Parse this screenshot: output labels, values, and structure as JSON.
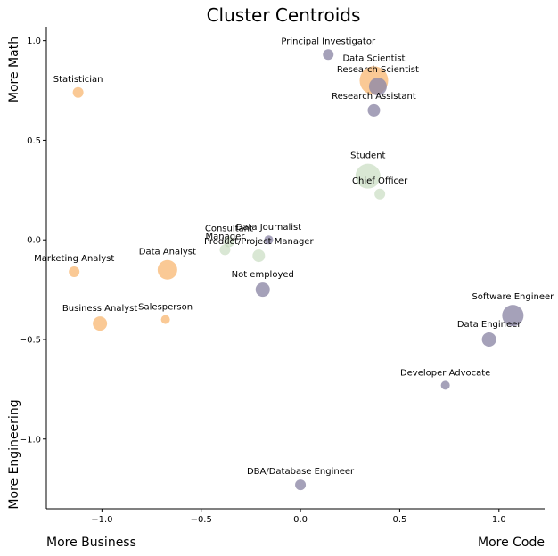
{
  "chart_data": {
    "type": "scatter",
    "title": "Cluster Centroids",
    "xlim": [
      -1.28,
      1.23
    ],
    "ylim": [
      -1.35,
      1.07
    ],
    "x_ticks": [
      -1.0,
      -0.5,
      0.0,
      0.5,
      1.0
    ],
    "x_tick_labels": [
      "−1.0",
      "−0.5",
      "0.0",
      "0.5",
      "1.0"
    ],
    "y_ticks": [
      1.0,
      0.5,
      0.0,
      -0.5,
      -1.0
    ],
    "y_tick_labels": [
      "1.0",
      "0.5",
      "0.0",
      "−0.5",
      "−1.0"
    ],
    "corner_labels": {
      "top_left": "More Math",
      "bottom_left_vertical": "More Engineering",
      "bottom_left": "More Business",
      "bottom_right": "More Code"
    },
    "grid": false,
    "colors": {
      "business": "#f9bb7a",
      "engineering": "#8e89a8",
      "generalist": "#b9d4b0"
    },
    "points": [
      {
        "label": "Principal Investigator",
        "x": 0.14,
        "y": 0.93,
        "size": 6,
        "group": "engineering"
      },
      {
        "label": "Data Scientist",
        "x": 0.37,
        "y": 0.8,
        "size": 16,
        "group": "business"
      },
      {
        "label": "Research Scientist",
        "x": 0.39,
        "y": 0.77,
        "size": 10,
        "group": "engineering"
      },
      {
        "label": "Research Assistant",
        "x": 0.37,
        "y": 0.65,
        "size": 7,
        "group": "engineering"
      },
      {
        "label": "Statistician",
        "x": -1.12,
        "y": 0.74,
        "size": 6,
        "group": "business"
      },
      {
        "label": "Student",
        "x": 0.34,
        "y": 0.32,
        "size": 14,
        "group": "generalist"
      },
      {
        "label": "Chief Officer",
        "x": 0.4,
        "y": 0.23,
        "size": 6,
        "group": "generalist"
      },
      {
        "label": "Consultant",
        "x": -0.36,
        "y": -0.01,
        "size": 6,
        "group": "generalist"
      },
      {
        "label": "Data Journalist",
        "x": -0.16,
        "y": 0.0,
        "size": 5,
        "group": "engineering"
      },
      {
        "label": "Manager",
        "x": -0.38,
        "y": -0.05,
        "size": 6,
        "group": "generalist"
      },
      {
        "label": "Product/Project Manager",
        "x": -0.21,
        "y": -0.08,
        "size": 7,
        "group": "generalist"
      },
      {
        "label": "Data Analyst",
        "x": -0.67,
        "y": -0.15,
        "size": 11,
        "group": "business"
      },
      {
        "label": "Marketing Analyst",
        "x": -1.14,
        "y": -0.16,
        "size": 6,
        "group": "business"
      },
      {
        "label": "Not employed",
        "x": -0.19,
        "y": -0.25,
        "size": 8,
        "group": "engineering"
      },
      {
        "label": "Salesperson",
        "x": -0.68,
        "y": -0.4,
        "size": 5,
        "group": "business"
      },
      {
        "label": "Business Analyst",
        "x": -1.01,
        "y": -0.42,
        "size": 8,
        "group": "business"
      },
      {
        "label": "Software Engineer",
        "x": 1.07,
        "y": -0.38,
        "size": 12,
        "group": "engineering"
      },
      {
        "label": "Data Engineer",
        "x": 0.95,
        "y": -0.5,
        "size": 8,
        "group": "engineering"
      },
      {
        "label": "Developer Advocate",
        "x": 0.73,
        "y": -0.73,
        "size": 5,
        "group": "engineering"
      },
      {
        "label": "DBA/Database Engineer",
        "x": 0.0,
        "y": -1.23,
        "size": 6,
        "group": "engineering"
      }
    ]
  }
}
